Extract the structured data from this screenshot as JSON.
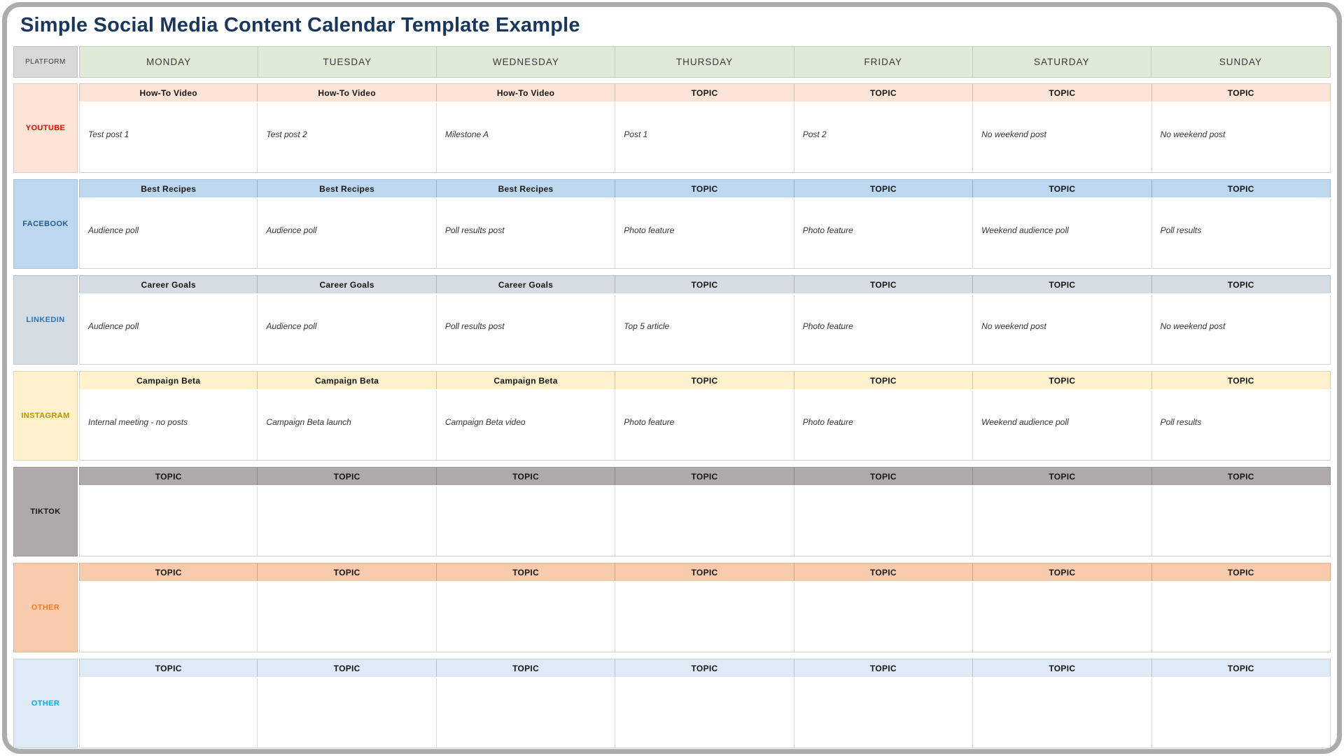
{
  "title": "Simple Social Media Content Calendar Template Example",
  "colors": {
    "title": "#17375e",
    "frame_border": "#acacac",
    "header_day_bg": "#dfead9",
    "platform_header_bg": "#d9d9d9"
  },
  "header": {
    "platform_label": "PLATFORM",
    "days": [
      "MONDAY",
      "TUESDAY",
      "WEDNESDAY",
      "THURSDAY",
      "FRIDAY",
      "SATURDAY",
      "SUNDAY"
    ]
  },
  "rows": [
    {
      "key": "youtube",
      "platform": "YOUTUBE",
      "bg": "#fce4d6",
      "label_color": "#fe0000",
      "cells": [
        {
          "topic": "How-To Video",
          "content": "Test post 1"
        },
        {
          "topic": "How-To Video",
          "content": "Test post 2"
        },
        {
          "topic": "How-To Video",
          "content": "Milestone A"
        },
        {
          "topic": "TOPIC",
          "content": "Post 1"
        },
        {
          "topic": "TOPIC",
          "content": "Post 2"
        },
        {
          "topic": "TOPIC",
          "content": "No weekend post"
        },
        {
          "topic": "TOPIC",
          "content": "No weekend post"
        }
      ]
    },
    {
      "key": "facebook",
      "platform": "FACEBOOK",
      "bg": "#bdd7ee",
      "label_color": "#2c5898",
      "cells": [
        {
          "topic": "Best Recipes",
          "content": "Audience poll"
        },
        {
          "topic": "Best Recipes",
          "content": "Audience poll"
        },
        {
          "topic": "Best Recipes",
          "content": "Poll results post"
        },
        {
          "topic": "TOPIC",
          "content": "Photo feature"
        },
        {
          "topic": "TOPIC",
          "content": "Photo feature"
        },
        {
          "topic": "TOPIC",
          "content": "Weekend audience poll"
        },
        {
          "topic": "TOPIC",
          "content": "Poll results"
        }
      ]
    },
    {
      "key": "linkedin",
      "platform": "LINKEDIN",
      "bg": "#d6dce4",
      "label_color": "#2e75b6",
      "cells": [
        {
          "topic": "Career Goals",
          "content": "Audience poll"
        },
        {
          "topic": "Career Goals",
          "content": "Audience poll"
        },
        {
          "topic": "Career Goals",
          "content": "Poll results post"
        },
        {
          "topic": "TOPIC",
          "content": "Top 5 article"
        },
        {
          "topic": "TOPIC",
          "content": "Photo feature"
        },
        {
          "topic": "TOPIC",
          "content": "No weekend post"
        },
        {
          "topic": "TOPIC",
          "content": "No weekend post"
        }
      ]
    },
    {
      "key": "instagram",
      "platform": "INSTAGRAM",
      "bg": "#fff2cc",
      "label_color": "#bf9000",
      "cells": [
        {
          "topic": "Campaign Beta",
          "content": "Internal meeting - no posts"
        },
        {
          "topic": "Campaign Beta",
          "content": "Campaign Beta launch"
        },
        {
          "topic": "Campaign Beta",
          "content": "Campaign Beta video"
        },
        {
          "topic": "TOPIC",
          "content": "Photo feature"
        },
        {
          "topic": "TOPIC",
          "content": "Photo feature"
        },
        {
          "topic": "TOPIC",
          "content": "Weekend audience poll"
        },
        {
          "topic": "TOPIC",
          "content": "Poll results"
        }
      ]
    },
    {
      "key": "tiktok",
      "platform": "TIKTOK",
      "bg": "#aeaaaa",
      "label_color": "#141414",
      "cells": [
        {
          "topic": "TOPIC",
          "content": ""
        },
        {
          "topic": "TOPIC",
          "content": ""
        },
        {
          "topic": "TOPIC",
          "content": ""
        },
        {
          "topic": "TOPIC",
          "content": ""
        },
        {
          "topic": "TOPIC",
          "content": ""
        },
        {
          "topic": "TOPIC",
          "content": ""
        },
        {
          "topic": "TOPIC",
          "content": ""
        }
      ]
    },
    {
      "key": "other-1",
      "platform": "OTHER",
      "bg": "#f8cbad",
      "label_color": "#ed7d31",
      "cells": [
        {
          "topic": "TOPIC",
          "content": ""
        },
        {
          "topic": "TOPIC",
          "content": ""
        },
        {
          "topic": "TOPIC",
          "content": ""
        },
        {
          "topic": "TOPIC",
          "content": ""
        },
        {
          "topic": "TOPIC",
          "content": ""
        },
        {
          "topic": "TOPIC",
          "content": ""
        },
        {
          "topic": "TOPIC",
          "content": ""
        }
      ]
    },
    {
      "key": "other-2",
      "platform": "OTHER",
      "bg": "#deeaf6",
      "label_color": "#00b0f0",
      "cells": [
        {
          "topic": "TOPIC",
          "content": ""
        },
        {
          "topic": "TOPIC",
          "content": ""
        },
        {
          "topic": "TOPIC",
          "content": ""
        },
        {
          "topic": "TOPIC",
          "content": ""
        },
        {
          "topic": "TOPIC",
          "content": ""
        },
        {
          "topic": "TOPIC",
          "content": ""
        },
        {
          "topic": "TOPIC",
          "content": ""
        }
      ]
    }
  ]
}
